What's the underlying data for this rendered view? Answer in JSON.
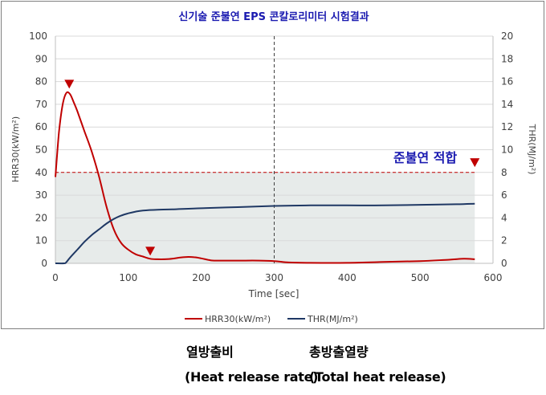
{
  "chart_data": {
    "type": "line",
    "title": "신기술 준불연 EPS 콘칼로리미터 시험결과",
    "xlabel": "Time [sec]",
    "ylabel_left": "HRR30(kW/m²)",
    "ylabel_right": "THR(MJ/m²)",
    "xlim": [
      0,
      600
    ],
    "ylim_left": [
      0,
      100
    ],
    "ylim_right": [
      0,
      20
    ],
    "x_ticks": [
      "0",
      "100",
      "200",
      "300",
      "400",
      "500",
      "600"
    ],
    "y_ticks_left": [
      "0",
      "10",
      "20",
      "30",
      "40",
      "50",
      "60",
      "70",
      "80",
      "90",
      "100"
    ],
    "y_ticks_right": [
      "0",
      "2",
      "4",
      "6",
      "8",
      "10",
      "12",
      "14",
      "16",
      "18",
      "20"
    ],
    "grid": true,
    "legend_position": "bottom",
    "series": [
      {
        "name": "HRR30(kW/m²)",
        "axis": "left",
        "color": "#c00000",
        "x": [
          0,
          5,
          10,
          15,
          20,
          25,
          30,
          40,
          50,
          60,
          70,
          80,
          90,
          100,
          110,
          120,
          130,
          140,
          150,
          160,
          170,
          180,
          190,
          200,
          210,
          220,
          250,
          280,
          300,
          320,
          350,
          400,
          450,
          500,
          540,
          560,
          575
        ],
        "y": [
          38,
          58,
          70,
          75,
          74.5,
          71,
          67,
          58,
          49,
          38,
          25,
          15,
          9,
          6,
          4,
          3,
          2,
          1.8,
          1.8,
          2,
          2.5,
          2.8,
          2.7,
          2.2,
          1.5,
          1.2,
          1.2,
          1.2,
          1,
          0.4,
          0.2,
          0.2,
          0.6,
          1,
          1.6,
          2,
          1.8
        ]
      },
      {
        "name": "THR(MJ/m²)",
        "axis": "right",
        "color": "#1f3864",
        "x": [
          0,
          12,
          15,
          20,
          30,
          40,
          50,
          60,
          70,
          80,
          90,
          100,
          110,
          120,
          140,
          160,
          200,
          250,
          300,
          350,
          400,
          450,
          500,
          550,
          575
        ],
        "y": [
          0,
          0,
          0.1,
          0.5,
          1.2,
          1.9,
          2.5,
          3.0,
          3.5,
          3.9,
          4.2,
          4.4,
          4.55,
          4.65,
          4.72,
          4.75,
          4.85,
          4.95,
          5.05,
          5.1,
          5.1,
          5.1,
          5.15,
          5.2,
          5.25
        ]
      }
    ],
    "criterion": {
      "value": 40,
      "label": "준불연 적합",
      "color": "#c00000"
    },
    "vertical_marker_x": 300,
    "peak_markers": [
      {
        "x": 19,
        "y": 79
      },
      {
        "x": 130,
        "y": 5.5
      },
      {
        "x": 575,
        "y": 44.5
      }
    ]
  },
  "captions": {
    "left_ko": "열방출비",
    "right_ko": "총방출열량",
    "left_en": "(Heat release rate)",
    "right_en": "(Total heat release)"
  }
}
